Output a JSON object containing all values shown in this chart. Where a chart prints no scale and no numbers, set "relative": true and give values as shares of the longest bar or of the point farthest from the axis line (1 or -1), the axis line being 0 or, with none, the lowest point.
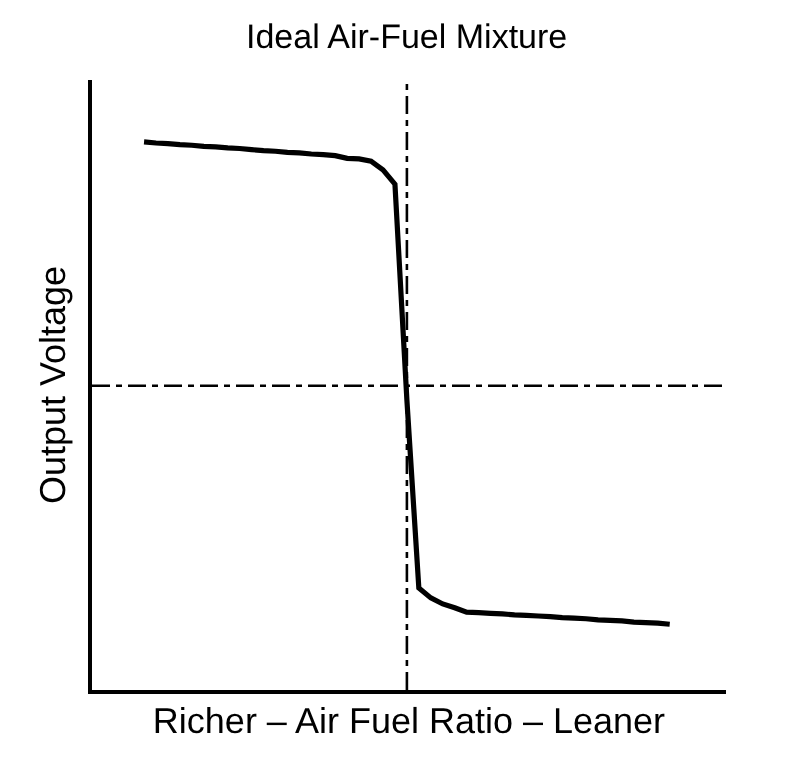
{
  "chart_data": {
    "type": "line",
    "relative": true,
    "title": "Ideal Air-Fuel Mixture",
    "xlabel": "Richer – Air Fuel Ratio – Leaner",
    "ylabel": "Output Voltage",
    "marker": "none",
    "line_style": "solid",
    "categories": [
      null,
      null,
      null,
      null,
      null,
      null,
      null,
      null,
      null,
      null,
      null,
      null,
      null,
      null,
      null,
      null,
      null,
      null,
      null,
      null,
      null,
      null,
      null,
      null,
      null,
      null,
      null,
      null,
      null,
      null,
      null,
      null,
      null,
      null,
      null,
      null,
      null,
      null,
      null,
      null,
      null,
      null,
      null,
      null,
      null
    ],
    "series": [
      {
        "color": "#000000",
        "values": [
          1.0,
          0.998,
          0.997,
          0.995,
          0.994,
          0.992,
          0.991,
          0.989,
          0.988,
          0.986,
          0.984,
          0.983,
          0.981,
          0.98,
          0.978,
          0.977,
          0.975,
          0.97,
          0.969,
          0.965,
          0.949,
          0.923,
          0.529,
          0.186,
          0.168,
          0.157,
          0.15,
          0.142,
          0.141,
          0.14,
          0.139,
          0.137,
          0.136,
          0.135,
          0.134,
          0.132,
          0.131,
          0.13,
          0.128,
          0.127,
          0.126,
          0.124,
          0.123,
          0.122,
          0.12
        ]
      }
    ],
    "ref_lines": [
      {
        "axis": "y",
        "value": 0.555,
        "line_style": "dashed",
        "color": "#000000"
      }
    ]
  }
}
